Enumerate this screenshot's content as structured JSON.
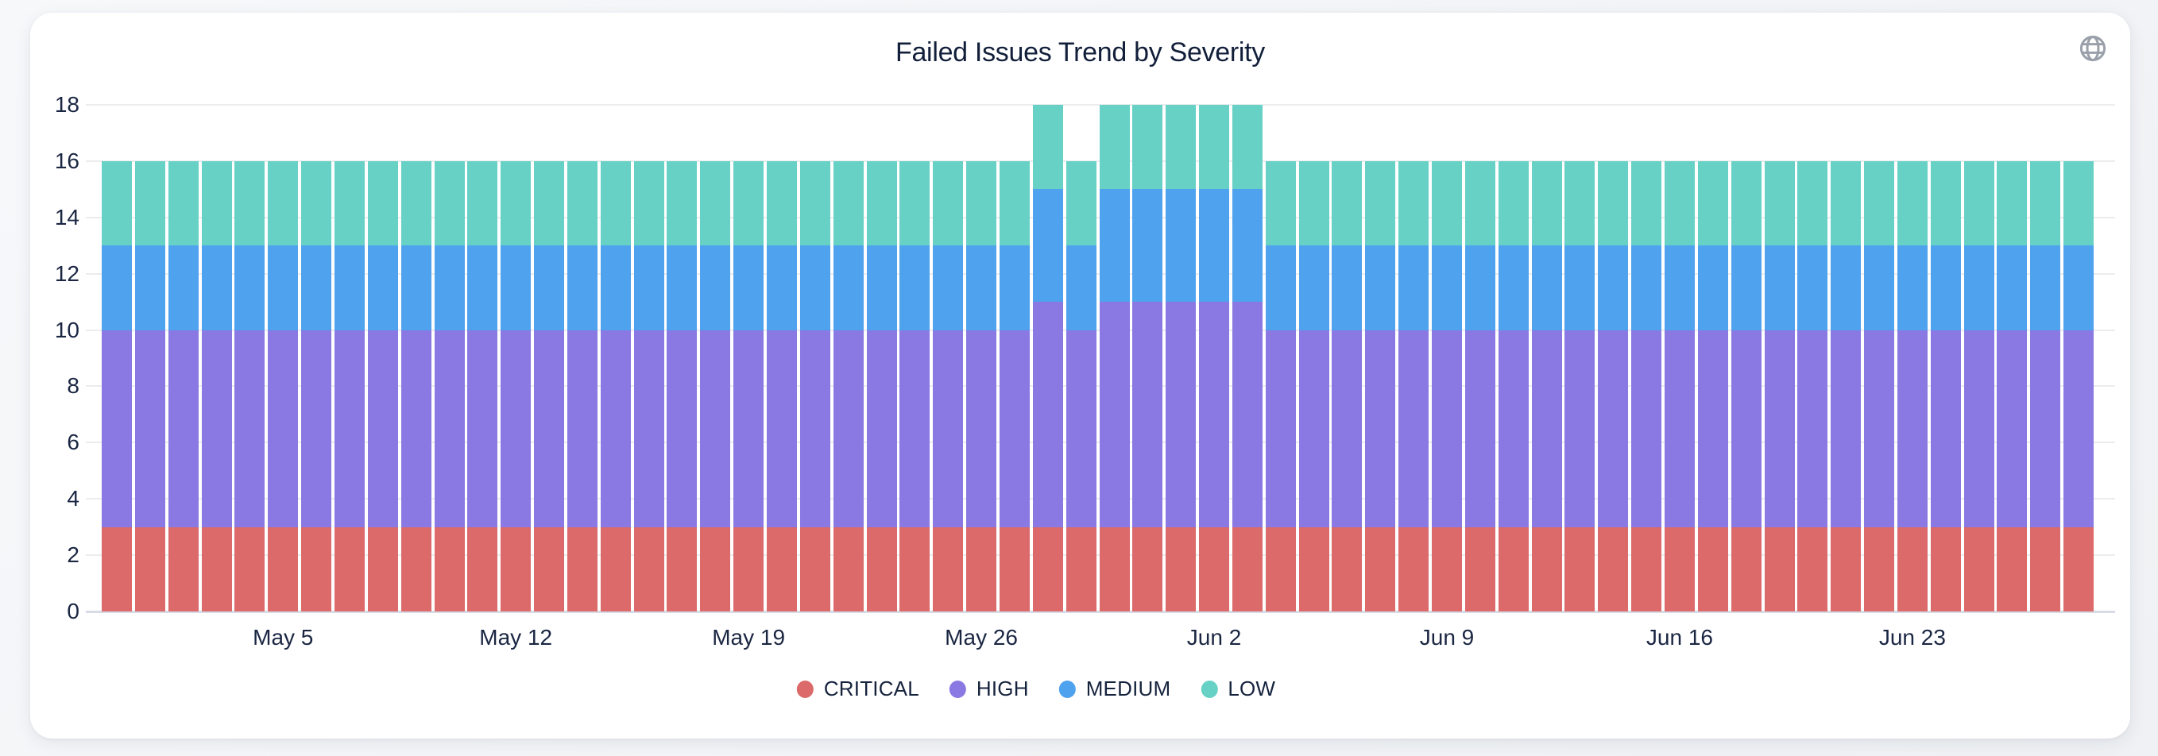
{
  "header": {
    "title": "Failed Issues Trend by Severity",
    "icon": "globe-icon"
  },
  "colors": {
    "critical": "#DC6A6A",
    "high": "#8A79E2",
    "medium": "#4FA2ED",
    "low": "#67D1C5",
    "grid": "#ebecee",
    "axis_baseline": "#d7dbe6",
    "tick_text": "#1a2642",
    "title_text": "#121f3a",
    "icon_gray": "#9aa0aa",
    "card_bg": "#ffffff",
    "page_bg": "#f2f3f6"
  },
  "chart_data": {
    "type": "bar",
    "stacked": true,
    "title": "Failed Issues Trend by Severity",
    "xlabel": "",
    "ylabel": "",
    "ylim": [
      0,
      18
    ],
    "y_ticks": [
      0,
      2,
      4,
      6,
      8,
      10,
      12,
      14,
      16,
      18
    ],
    "grid": true,
    "legend_position": "bottom",
    "categories": [
      "Apr 30",
      "May 1",
      "May 2",
      "May 3",
      "May 4",
      "May 5",
      "May 6",
      "May 7",
      "May 8",
      "May 9",
      "May 10",
      "May 11",
      "May 12",
      "May 13",
      "May 14",
      "May 15",
      "May 16",
      "May 17",
      "May 18",
      "May 19",
      "May 20",
      "May 21",
      "May 22",
      "May 23",
      "May 24",
      "May 25",
      "May 26",
      "May 27",
      "May 28",
      "May 29",
      "May 30",
      "May 31",
      "Jun 1",
      "Jun 2",
      "Jun 3",
      "Jun 4",
      "Jun 5",
      "Jun 6",
      "Jun 7",
      "Jun 8",
      "Jun 9",
      "Jun 10",
      "Jun 11",
      "Jun 12",
      "Jun 13",
      "Jun 14",
      "Jun 15",
      "Jun 16",
      "Jun 17",
      "Jun 18",
      "Jun 19",
      "Jun 20",
      "Jun 21",
      "Jun 22",
      "Jun 23",
      "Jun 24",
      "Jun 25",
      "Jun 26",
      "Jun 27",
      "Jun 28"
    ],
    "x_tick_labels": [
      "May 5",
      "May 12",
      "May 19",
      "May 26",
      "Jun 2",
      "Jun 9",
      "Jun 16",
      "Jun 23"
    ],
    "x_tick_indices": [
      5,
      12,
      19,
      26,
      33,
      40,
      47,
      54
    ],
    "series": [
      {
        "name": "CRITICAL",
        "color": "#DC6A6A",
        "values": [
          3,
          3,
          3,
          3,
          3,
          3,
          3,
          3,
          3,
          3,
          3,
          3,
          3,
          3,
          3,
          3,
          3,
          3,
          3,
          3,
          3,
          3,
          3,
          3,
          3,
          3,
          3,
          3,
          3,
          3,
          3,
          3,
          3,
          3,
          3,
          3,
          3,
          3,
          3,
          3,
          3,
          3,
          3,
          3,
          3,
          3,
          3,
          3,
          3,
          3,
          3,
          3,
          3,
          3,
          3,
          3,
          3,
          3,
          3,
          3
        ]
      },
      {
        "name": "HIGH",
        "color": "#8A79E2",
        "values": [
          7,
          7,
          7,
          7,
          7,
          7,
          7,
          7,
          7,
          7,
          7,
          7,
          7,
          7,
          7,
          7,
          7,
          7,
          7,
          7,
          7,
          7,
          7,
          7,
          7,
          7,
          7,
          7,
          8,
          7,
          8,
          8,
          8,
          8,
          8,
          7,
          7,
          7,
          7,
          7,
          7,
          7,
          7,
          7,
          7,
          7,
          7,
          7,
          7,
          7,
          7,
          7,
          7,
          7,
          7,
          7,
          7,
          7,
          7,
          7
        ]
      },
      {
        "name": "MEDIUM",
        "color": "#4FA2ED",
        "values": [
          3,
          3,
          3,
          3,
          3,
          3,
          3,
          3,
          3,
          3,
          3,
          3,
          3,
          3,
          3,
          3,
          3,
          3,
          3,
          3,
          3,
          3,
          3,
          3,
          3,
          3,
          3,
          3,
          4,
          3,
          4,
          4,
          4,
          4,
          4,
          3,
          3,
          3,
          3,
          3,
          3,
          3,
          3,
          3,
          3,
          3,
          3,
          3,
          3,
          3,
          3,
          3,
          3,
          3,
          3,
          3,
          3,
          3,
          3,
          3
        ]
      },
      {
        "name": "LOW",
        "color": "#67D1C5",
        "values": [
          3,
          3,
          3,
          3,
          3,
          3,
          3,
          3,
          3,
          3,
          3,
          3,
          3,
          3,
          3,
          3,
          3,
          3,
          3,
          3,
          3,
          3,
          3,
          3,
          3,
          3,
          3,
          3,
          3,
          3,
          3,
          3,
          3,
          3,
          3,
          3,
          3,
          3,
          3,
          3,
          3,
          3,
          3,
          3,
          3,
          3,
          3,
          3,
          3,
          3,
          3,
          3,
          3,
          3,
          3,
          3,
          3,
          3,
          3,
          3
        ]
      }
    ]
  }
}
